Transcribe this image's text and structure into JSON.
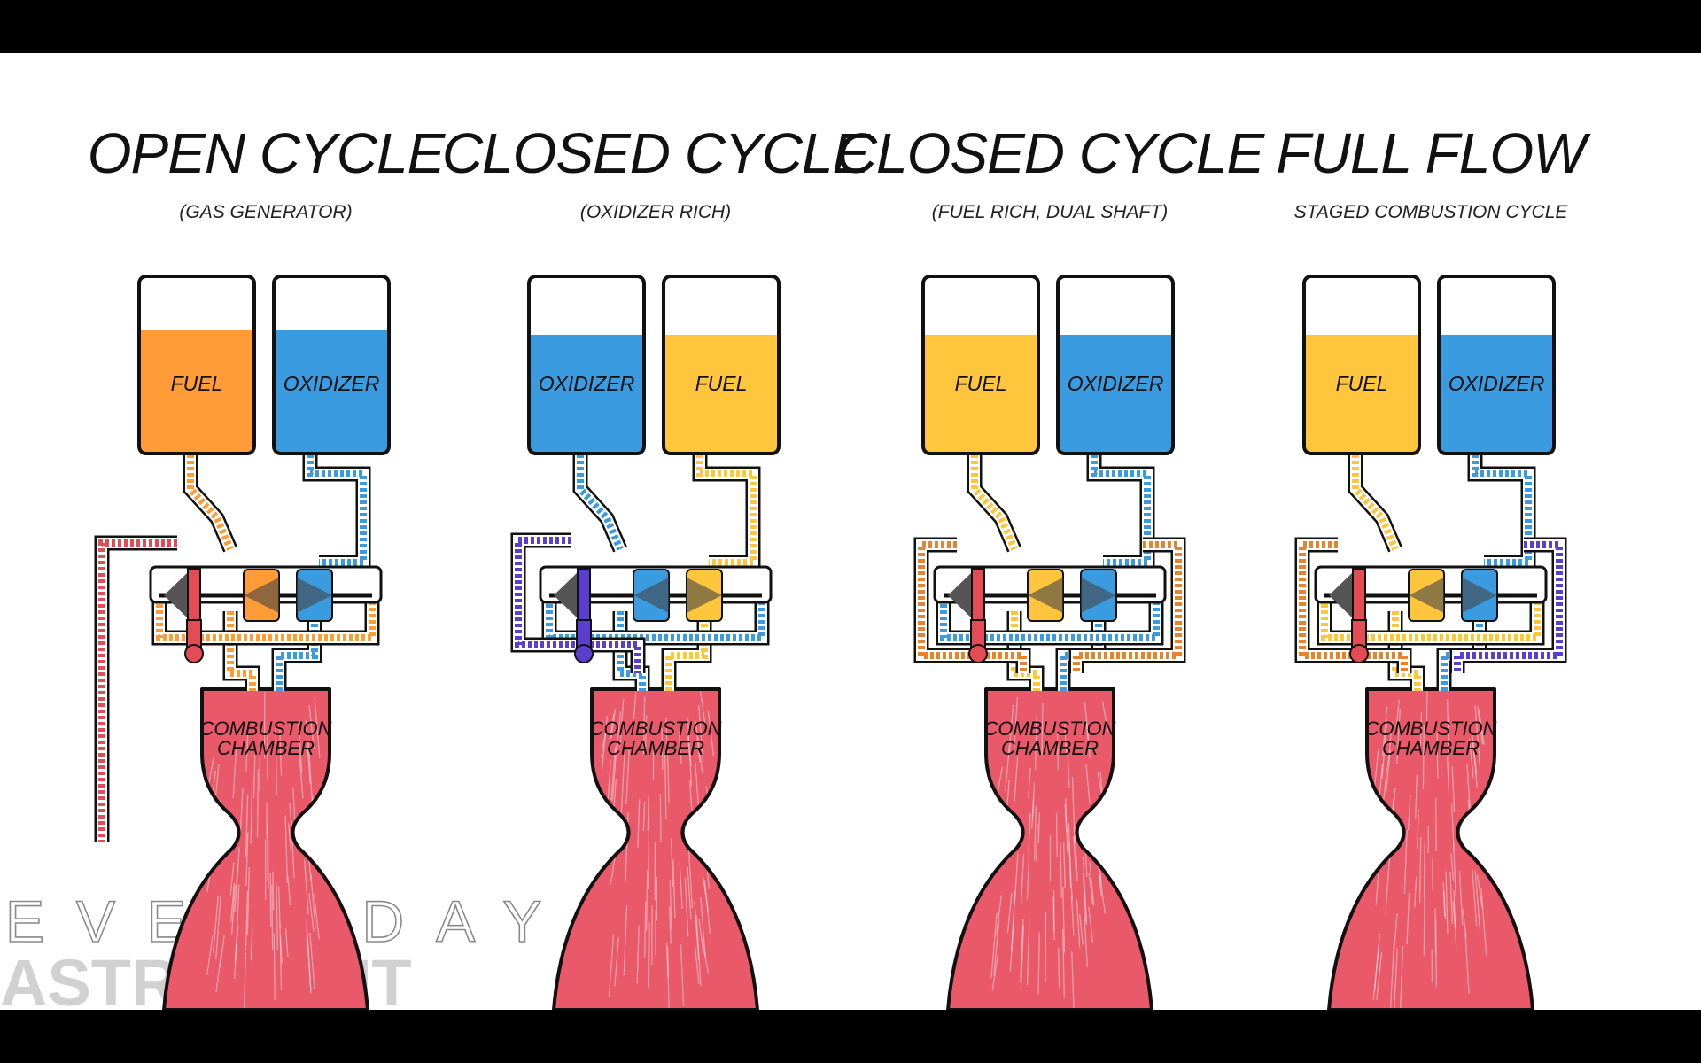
{
  "colors": {
    "fuel_orange": "#ff9c38",
    "fuel_yellow": "#ffc53c",
    "oxidizer_blue": "#3a9be0",
    "hot_gas_red": "#e34b55",
    "exhaust_purple": "#5a3ed0",
    "plume_red": "#e9596a",
    "outline": "#111111"
  },
  "panels": [
    {
      "title": "OPEN CYCLE",
      "subtitle": "(GAS GENERATOR)",
      "left_tank": {
        "label": "FUEL",
        "color": "#ff9c38",
        "level": 0.7
      },
      "right_tank": {
        "label": "OXIDIZER",
        "color": "#3a9be0",
        "level": 0.7
      },
      "chamber_label_line1": "COMBUSTION",
      "chamber_label_line2": "CHAMBER"
    },
    {
      "title": "CLOSED CYCLE",
      "subtitle": "(OXIDIZER RICH)",
      "left_tank": {
        "label": "OXIDIZER",
        "color": "#3a9be0",
        "level": 0.67
      },
      "right_tank": {
        "label": "FUEL",
        "color": "#ffc53c",
        "level": 0.67
      },
      "chamber_label_line1": "COMBUSTION",
      "chamber_label_line2": "CHAMBER"
    },
    {
      "title": "CLOSED CYCLE",
      "subtitle": "(FUEL RICH, DUAL SHAFT)",
      "left_tank": {
        "label": "FUEL",
        "color": "#ffc53c",
        "level": 0.67
      },
      "right_tank": {
        "label": "OXIDIZER",
        "color": "#3a9be0",
        "level": 0.67
      },
      "chamber_label_line1": "COMBUSTION",
      "chamber_label_line2": "CHAMBER"
    },
    {
      "title": "FULL FLOW",
      "subtitle": "STAGED COMBUSTION CYCLE",
      "left_tank": {
        "label": "FUEL",
        "color": "#ffc53c",
        "level": 0.67
      },
      "right_tank": {
        "label": "OXIDIZER",
        "color": "#3a9be0",
        "level": 0.67
      },
      "chamber_label_line1": "COMBUSTION",
      "chamber_label_line2": "CHAMBER"
    }
  ],
  "watermark": {
    "line1": "EVERYDAY",
    "line2": "ASTRONAUT"
  }
}
